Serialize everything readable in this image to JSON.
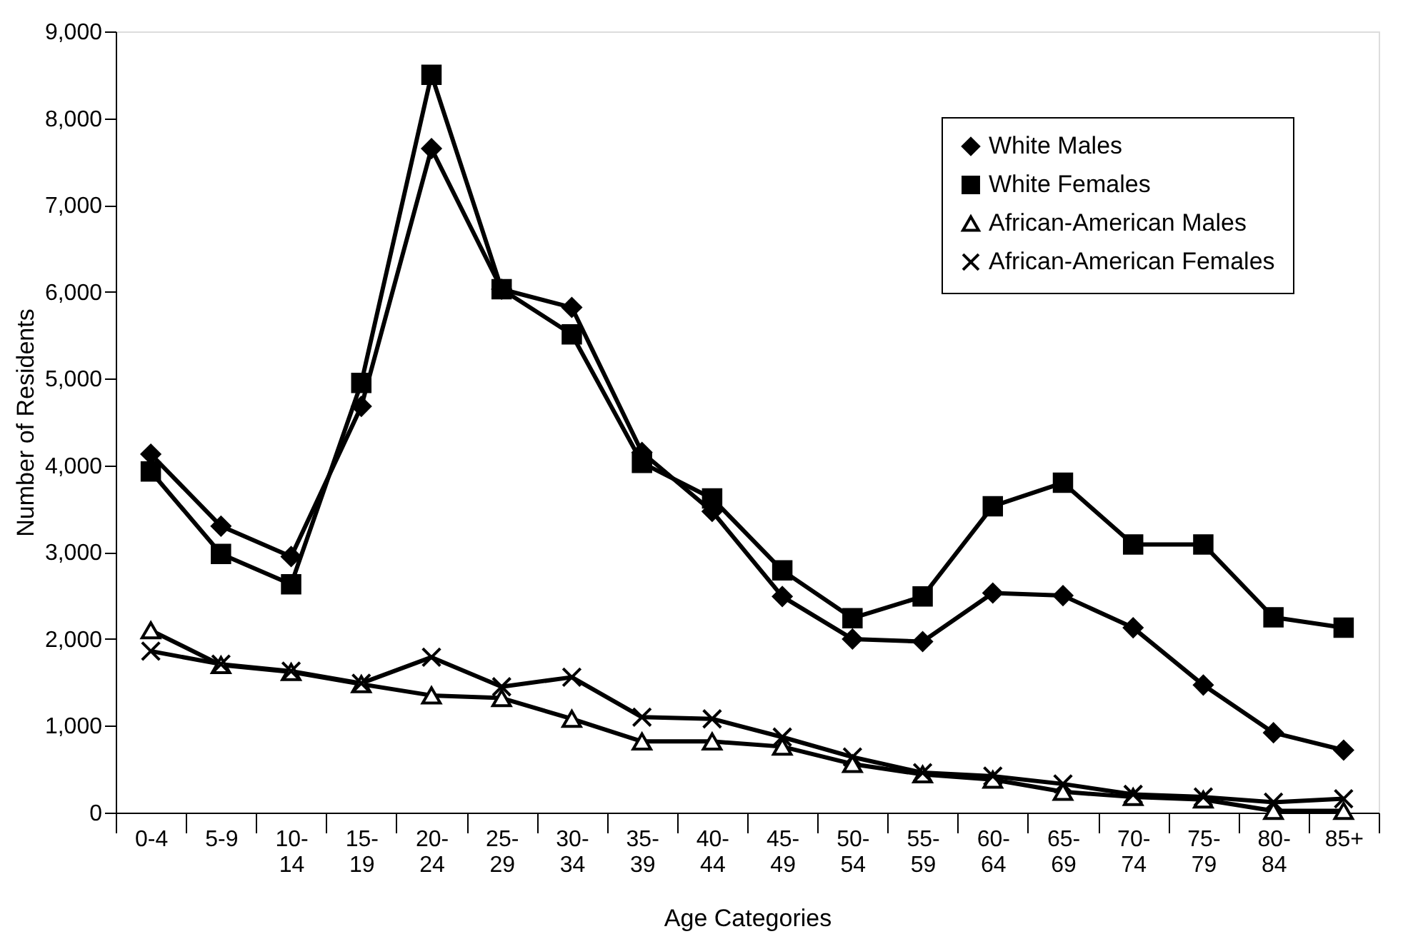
{
  "chart_data": {
    "type": "line",
    "xlabel": "Age Categories",
    "ylabel": "Number of Residents",
    "categories": [
      "0-4",
      "5-9",
      "10-14",
      "15-19",
      "20-24",
      "25-29",
      "30-34",
      "35-39",
      "40-44",
      "45-49",
      "50-54",
      "55-59",
      "60-64",
      "65-69",
      "70-74",
      "75-79",
      "80-84",
      "85+"
    ],
    "series": [
      {
        "name": "White Males",
        "color": "#000000",
        "marker": "diamond",
        "values": [
          4130,
          3300,
          2950,
          4680,
          7650,
          6030,
          5820,
          4150,
          3470,
          2490,
          2000,
          1970,
          2530,
          2500,
          2130,
          1470,
          920,
          720
        ]
      },
      {
        "name": "White Females",
        "color": "#000000",
        "marker": "square",
        "values": [
          3930,
          2980,
          2630,
          4950,
          8500,
          6030,
          5510,
          4030,
          3620,
          2790,
          2240,
          2490,
          3530,
          3800,
          3090,
          3090,
          2250,
          2130
        ]
      },
      {
        "name": "African-American Males",
        "color": "#000000",
        "marker": "triangle",
        "values": [
          2100,
          1700,
          1620,
          1480,
          1350,
          1320,
          1080,
          820,
          820,
          760,
          560,
          440,
          380,
          240,
          180,
          150,
          20,
          20
        ]
      },
      {
        "name": "African-American Females",
        "color": "#000000",
        "marker": "cross",
        "values": [
          1860,
          1710,
          1630,
          1490,
          1790,
          1450,
          1560,
          1100,
          1080,
          870,
          640,
          460,
          420,
          330,
          210,
          180,
          120,
          160
        ]
      }
    ],
    "ylim": [
      0,
      9000
    ],
    "yticks": [
      0,
      {
        "value": 1000,
        "label": "1,000"
      },
      {
        "value": 2000,
        "label": "2,000"
      },
      {
        "value": 3000,
        "label": "3,000"
      },
      {
        "value": 4000,
        "label": "4,000"
      },
      {
        "value": 5000,
        "label": "5,000"
      },
      {
        "value": 6000,
        "label": "6,000"
      },
      {
        "value": 7000,
        "label": "7,000"
      },
      {
        "value": 8000,
        "label": "8,000"
      },
      {
        "value": 9000,
        "label": "9,000"
      }
    ],
    "grid": false,
    "legend": "top right",
    "line_style": "solid"
  }
}
